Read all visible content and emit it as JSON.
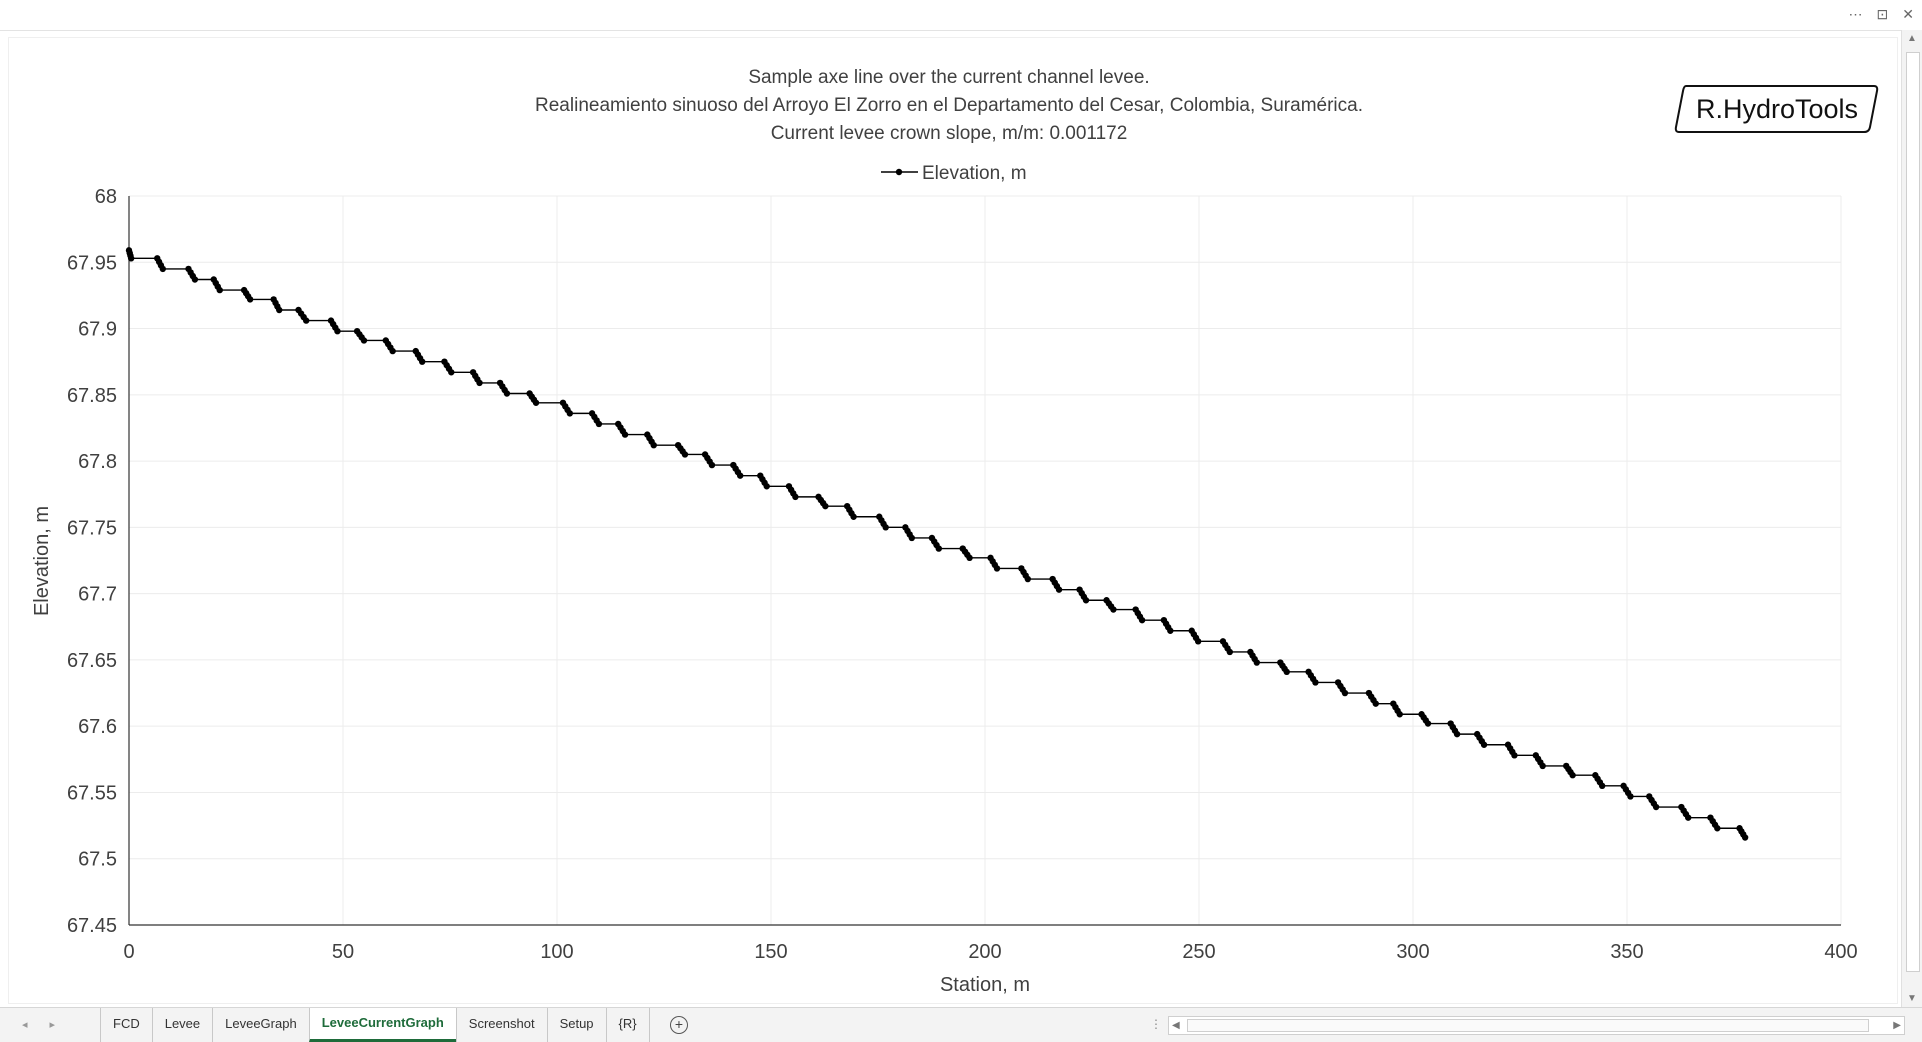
{
  "window": {
    "controls": [
      "⋯",
      "⊡",
      "✕"
    ]
  },
  "logo_text": "R.HydroTools",
  "chart_data": {
    "type": "line",
    "title_lines": [
      "Sample axe line over the current channel levee.",
      "Realineamiento sinuoso del Arroyo El Zorro en el Departamento del Cesar, Colombia, Suramérica.",
      "Current levee crown slope, m/m: 0.001172"
    ],
    "xlabel": "Station, m",
    "ylabel": "Elevation, m",
    "xlim": [
      0,
      400
    ],
    "ylim": [
      67.45,
      68
    ],
    "x_ticks": [
      "0",
      "50",
      "100",
      "150",
      "200",
      "250",
      "300",
      "350",
      "400"
    ],
    "y_ticks": [
      "67.45",
      "67.5",
      "67.55",
      "67.6",
      "67.65",
      "67.7",
      "67.75",
      "67.8",
      "67.85",
      "67.9",
      "67.95",
      "68"
    ],
    "grid": true,
    "legend_position": "top-center",
    "line_color": "#000000",
    "series": [
      {
        "name": "Elevation, m",
        "step": 0.00781,
        "points": [
          [
            0,
            67.959
          ],
          [
            0.5,
            67.953
          ],
          [
            6.6,
            67.953
          ],
          [
            7.9,
            67.945
          ],
          [
            13.9,
            67.945
          ],
          [
            15.4,
            67.937
          ],
          [
            19.8,
            67.937
          ],
          [
            21.2,
            67.929
          ],
          [
            26.9,
            67.929
          ],
          [
            28.3,
            67.922
          ],
          [
            33.8,
            67.922
          ],
          [
            35.1,
            67.914
          ],
          [
            39.6,
            67.914
          ],
          [
            41.4,
            67.906
          ],
          [
            47.2,
            67.906
          ],
          [
            48.7,
            67.898
          ],
          [
            53.3,
            67.898
          ],
          [
            54.9,
            67.891
          ],
          [
            60.0,
            67.891
          ],
          [
            61.6,
            67.883
          ],
          [
            67.0,
            67.883
          ],
          [
            68.5,
            67.875
          ],
          [
            73.7,
            67.875
          ],
          [
            75.3,
            67.867
          ],
          [
            80.4,
            67.867
          ],
          [
            81.9,
            67.859
          ],
          [
            86.7,
            67.859
          ],
          [
            88.3,
            67.851
          ],
          [
            93.6,
            67.851
          ],
          [
            95.1,
            67.844
          ],
          [
            101.4,
            67.844
          ],
          [
            103.0,
            67.836
          ],
          [
            108.2,
            67.836
          ],
          [
            109.8,
            67.828
          ],
          [
            114.3,
            67.828
          ],
          [
            115.9,
            67.82
          ],
          [
            121.1,
            67.82
          ],
          [
            122.6,
            67.812
          ],
          [
            128.3,
            67.812
          ],
          [
            129.9,
            67.805
          ],
          [
            134.6,
            67.805
          ],
          [
            136.2,
            67.797
          ],
          [
            141.2,
            67.797
          ],
          [
            142.8,
            67.789
          ],
          [
            147.5,
            67.789
          ],
          [
            149.0,
            67.781
          ],
          [
            154.2,
            67.781
          ],
          [
            155.7,
            67.773
          ],
          [
            161.1,
            67.773
          ],
          [
            162.7,
            67.766
          ],
          [
            167.8,
            67.766
          ],
          [
            169.3,
            67.758
          ],
          [
            175.3,
            67.758
          ],
          [
            176.8,
            67.75
          ],
          [
            181.4,
            67.75
          ],
          [
            182.9,
            67.742
          ],
          [
            187.6,
            67.742
          ],
          [
            189.2,
            67.734
          ],
          [
            194.8,
            67.734
          ],
          [
            196.4,
            67.727
          ],
          [
            201.3,
            67.727
          ],
          [
            202.8,
            67.719
          ],
          [
            208.5,
            67.719
          ],
          [
            210.0,
            67.711
          ],
          [
            215.8,
            67.711
          ],
          [
            217.3,
            67.703
          ],
          [
            222.1,
            67.703
          ],
          [
            223.6,
            67.695
          ],
          [
            228.4,
            67.695
          ],
          [
            230.0,
            67.688
          ],
          [
            235.2,
            67.688
          ],
          [
            236.7,
            67.68
          ],
          [
            241.8,
            67.68
          ],
          [
            243.3,
            67.672
          ],
          [
            248.3,
            67.672
          ],
          [
            249.8,
            67.664
          ],
          [
            255.6,
            67.664
          ],
          [
            257.2,
            67.656
          ],
          [
            262.0,
            67.656
          ],
          [
            263.5,
            67.648
          ],
          [
            269.0,
            67.648
          ],
          [
            270.5,
            67.641
          ],
          [
            275.6,
            67.641
          ],
          [
            277.2,
            67.633
          ],
          [
            282.5,
            67.633
          ],
          [
            284.1,
            67.625
          ],
          [
            289.7,
            67.625
          ],
          [
            291.3,
            67.617
          ],
          [
            295.4,
            67.617
          ],
          [
            296.9,
            67.609
          ],
          [
            302.0,
            67.609
          ],
          [
            303.5,
            67.602
          ],
          [
            308.8,
            67.602
          ],
          [
            310.3,
            67.594
          ],
          [
            315.0,
            67.594
          ],
          [
            316.6,
            67.586
          ],
          [
            322.2,
            67.586
          ],
          [
            323.7,
            67.578
          ],
          [
            328.7,
            67.578
          ],
          [
            330.3,
            67.57
          ],
          [
            335.8,
            67.57
          ],
          [
            337.3,
            67.563
          ],
          [
            342.6,
            67.563
          ],
          [
            344.2,
            67.555
          ],
          [
            349.2,
            67.555
          ],
          [
            350.8,
            67.547
          ],
          [
            355.2,
            67.547
          ],
          [
            356.8,
            67.539
          ],
          [
            362.7,
            67.539
          ],
          [
            364.3,
            67.531
          ],
          [
            369.5,
            67.531
          ],
          [
            371.1,
            67.523
          ],
          [
            376.3,
            67.523
          ],
          [
            377.6,
            67.516
          ]
        ]
      }
    ]
  },
  "sheet_nav": [
    "◂",
    "▸"
  ],
  "tabs": [
    "FCD",
    "Levee",
    "LeveeGraph",
    "LeveeCurrentGraph",
    "Screenshot",
    "Setup",
    "{R}"
  ],
  "active_tab": "LeveeCurrentGraph",
  "add_sheet_symbol": "+",
  "scroll_split": "⋮"
}
